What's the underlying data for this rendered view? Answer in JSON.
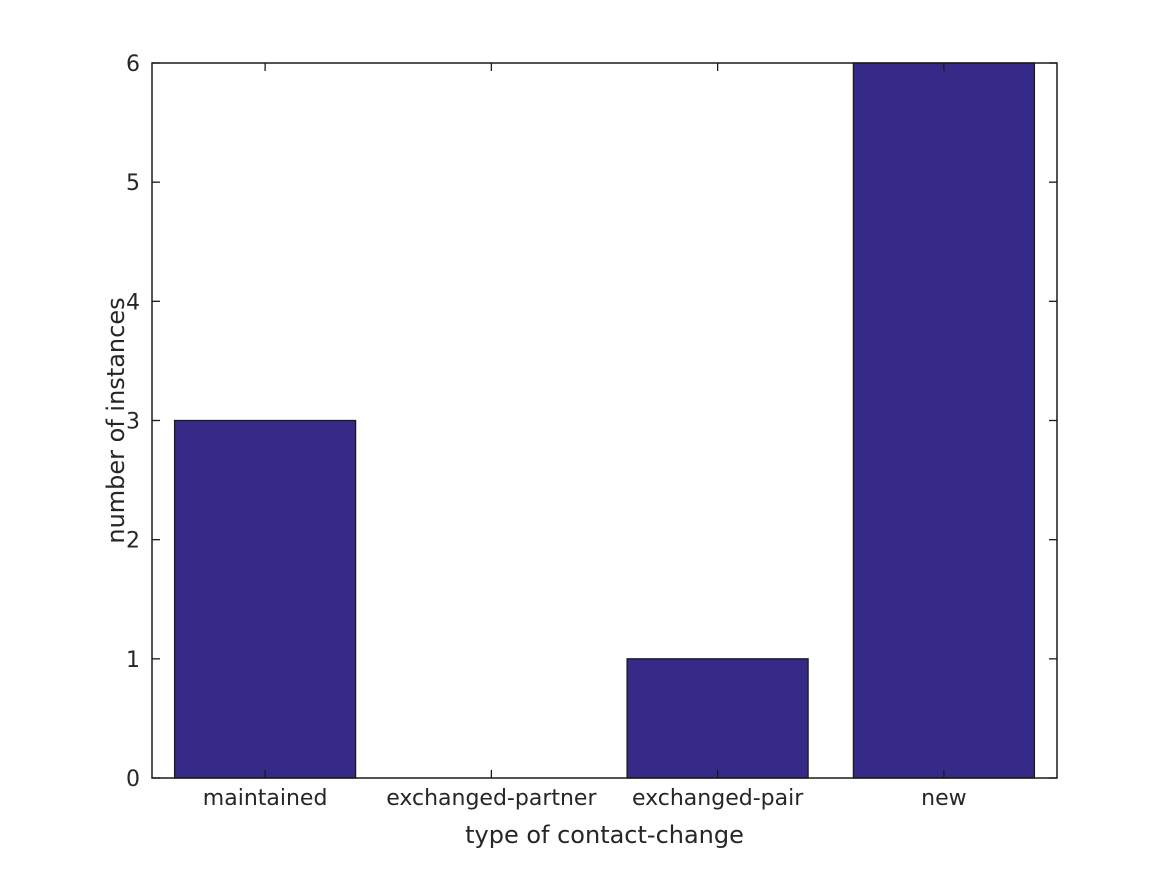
{
  "figure": {
    "background": "#ffffff"
  },
  "chart_data": {
    "type": "bar",
    "categories": [
      "maintained",
      "exchanged-partner",
      "exchanged-pair",
      "new"
    ],
    "values": [
      3,
      0,
      1,
      6
    ],
    "title": "",
    "xlabel": "type of contact-change",
    "ylabel": "number of instances",
    "ylim": [
      0,
      6
    ],
    "yticks": [
      0,
      1,
      2,
      3,
      4,
      5,
      6
    ],
    "bar_width_fraction": 0.8,
    "bar_color": "#352a87",
    "bar_edge_color": "#1a1a1a",
    "axis_color": "#1a1a1a",
    "text_color": "#262626",
    "tick_direction": "in",
    "box": true,
    "grid": false,
    "legend": null
  }
}
